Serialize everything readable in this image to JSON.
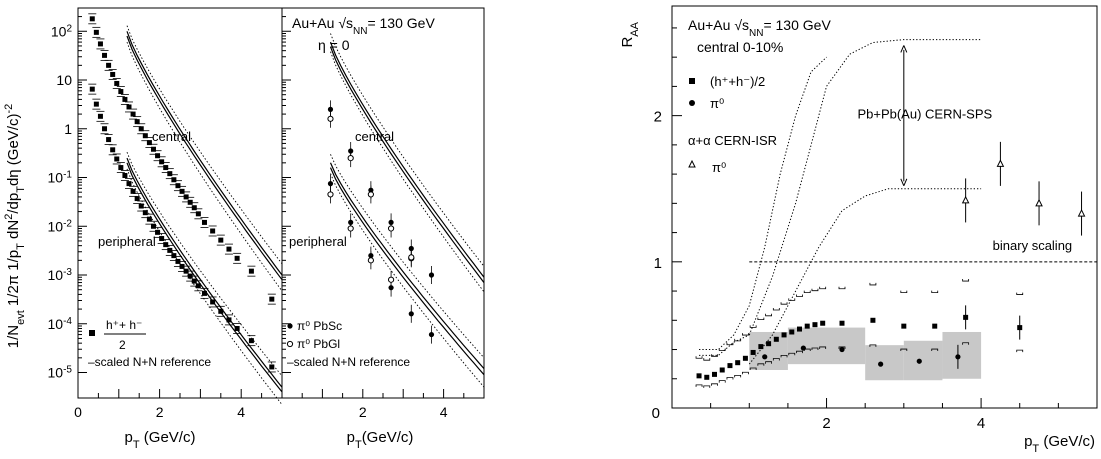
{
  "chart_data": [
    {
      "type": "scatter",
      "panel": "left",
      "log_y": true,
      "ylabel_parts": [
        "1/N",
        "evt",
        " 1/2π 1/p",
        "T",
        " dN",
        "2",
        "/dp",
        "T",
        "dη (GeV/c)",
        "-2"
      ],
      "xlabel_parts": [
        "p",
        "T",
        " (GeV/c)"
      ],
      "xlim": [
        0,
        5
      ],
      "ylim": [
        3e-06,
        300
      ],
      "xticks": [
        "0",
        "2",
        "4"
      ],
      "yticks": [
        {
          "v": 100,
          "b": "10",
          "e": "2"
        },
        {
          "v": 10,
          "b": "10",
          "e": ""
        },
        {
          "v": 1,
          "b": "1",
          "e": ""
        },
        {
          "v": 0.1,
          "b": "10",
          "e": "-1"
        },
        {
          "v": 0.01,
          "b": "10",
          "e": "-2"
        },
        {
          "v": 0.001,
          "b": "10",
          "e": "-3"
        },
        {
          "v": 0.0001,
          "b": "10",
          "e": "-4"
        },
        {
          "v": 1e-05,
          "b": "10",
          "e": "-5"
        }
      ],
      "labels": {
        "central": "central",
        "peripheral": "peripheral"
      },
      "legend": {
        "h_num": "h⁺+ h⁻",
        "h_den": "2",
        "ref": "–scaled N+N reference"
      },
      "series": [
        {
          "marker": "square",
          "x": [
            0.35,
            0.45,
            0.55,
            0.65,
            0.75,
            0.85,
            0.95,
            1.05,
            1.15,
            1.25,
            1.35,
            1.45,
            1.55,
            1.65,
            1.75,
            1.85,
            1.95,
            2.05,
            2.15,
            2.25,
            2.35,
            2.45,
            2.55,
            2.65,
            2.75,
            2.85,
            2.95,
            3.1,
            3.3,
            3.5,
            3.7,
            3.9,
            4.25,
            4.75
          ],
          "y": [
            180,
            95,
            55,
            32,
            20,
            13,
            8.5,
            5.8,
            4,
            2.8,
            2.0,
            1.4,
            1.0,
            0.72,
            0.52,
            0.38,
            0.28,
            0.21,
            0.16,
            0.12,
            0.09,
            0.068,
            0.052,
            0.04,
            0.031,
            0.024,
            0.018,
            0.012,
            0.008,
            0.0052,
            0.0034,
            0.0022,
            0.0012,
            0.00032
          ]
        },
        {
          "marker": "square",
          "x": [
            0.35,
            0.45,
            0.55,
            0.65,
            0.75,
            0.85,
            0.95,
            1.05,
            1.15,
            1.25,
            1.35,
            1.45,
            1.55,
            1.65,
            1.75,
            1.85,
            1.95,
            2.05,
            2.15,
            2.25,
            2.35,
            2.45,
            2.55,
            2.65,
            2.75,
            2.85,
            2.95,
            3.1,
            3.3,
            3.5,
            3.7,
            3.9,
            4.25,
            4.75
          ],
          "y": [
            6.5,
            3.2,
            1.8,
            1.0,
            0.6,
            0.37,
            0.24,
            0.16,
            0.11,
            0.075,
            0.052,
            0.037,
            0.026,
            0.019,
            0.014,
            0.01,
            0.0075,
            0.0056,
            0.0042,
            0.0032,
            0.0025,
            0.0019,
            0.0015,
            0.0012,
            0.00095,
            0.00075,
            0.0006,
            0.00042,
            0.00028,
            0.00018,
            0.00012,
            8e-05,
            4.5e-05,
            1.3e-05
          ]
        }
      ],
      "curves": [
        {
          "style": "solid",
          "x": [
            1.2,
            5
          ],
          "y": [
            100,
            0.001
          ]
        },
        {
          "style": "solid",
          "x": [
            1.2,
            5
          ],
          "y": [
            80,
            0.0008
          ]
        },
        {
          "style": "dotted",
          "x": [
            1.2,
            5
          ],
          "y": [
            130,
            0.0017
          ]
        },
        {
          "style": "dotted",
          "x": [
            1.2,
            5
          ],
          "y": [
            60,
            0.00047
          ]
        },
        {
          "style": "solid",
          "x": [
            1.2,
            5
          ],
          "y": [
            0.25,
            5e-06
          ]
        },
        {
          "style": "solid",
          "x": [
            1.2,
            5
          ],
          "y": [
            0.2,
            4e-06
          ]
        },
        {
          "style": "dotted",
          "x": [
            1.2,
            5
          ],
          "y": [
            0.33,
            8.5e-06
          ]
        },
        {
          "style": "dotted",
          "x": [
            1.2,
            5
          ],
          "y": [
            0.15,
            2.2e-06
          ]
        }
      ]
    },
    {
      "type": "scatter",
      "panel": "middle",
      "log_y": true,
      "title_parts": [
        "Au+Au √s",
        "NN",
        "= 130 GeV"
      ],
      "subtitle": "η = 0",
      "xlabel_parts": [
        "p",
        "T",
        "(GeV/c)"
      ],
      "xlim": [
        0,
        5
      ],
      "ylim": [
        3e-06,
        300
      ],
      "xticks": [
        "2",
        "4"
      ],
      "labels": {
        "central": "central",
        "peripheral": "peripheral"
      },
      "legend": {
        "pbsc": "π⁰ PbSc",
        "pbgl": "π⁰ PbGl",
        "ref": "–scaled N+N reference"
      },
      "series": [
        {
          "name": "π⁰ PbSc",
          "marker": "circle",
          "x": [
            1.2,
            1.7,
            2.2,
            2.7,
            3.2,
            3.7
          ],
          "y": [
            2.5,
            0.35,
            0.055,
            0.012,
            0.0035,
            0.001
          ],
          "x2": [
            1.2,
            1.7,
            2.2,
            2.7,
            3.2,
            3.7
          ],
          "y2": [
            0.075,
            0.012,
            0.0025,
            0.00055,
            0.00016,
            6e-05
          ]
        },
        {
          "name": "π⁰ PbGl",
          "marker": "open-circle",
          "x": [
            1.2,
            1.7,
            2.2,
            2.7,
            3.2
          ],
          "y": [
            1.6,
            0.25,
            0.045,
            0.009,
            0.0022
          ],
          "x2": [
            1.2,
            1.7,
            2.2,
            2.7,
            3.2
          ],
          "y2": [
            0.045,
            0.009,
            0.002,
            0.0008,
            0.0023
          ]
        }
      ],
      "curves": [
        {
          "style": "solid",
          "x": [
            1.2,
            5
          ],
          "y": [
            60,
            0.0009
          ]
        },
        {
          "style": "solid",
          "x": [
            1.2,
            5
          ],
          "y": [
            48,
            0.0007
          ]
        },
        {
          "style": "dotted",
          "x": [
            1.2,
            5
          ],
          "y": [
            90,
            0.0015
          ]
        },
        {
          "style": "dotted",
          "x": [
            1.2,
            5
          ],
          "y": [
            38,
            0.00045
          ]
        },
        {
          "style": "solid",
          "x": [
            1.2,
            5
          ],
          "y": [
            0.2,
            1.2e-05
          ]
        },
        {
          "style": "solid",
          "x": [
            1.2,
            5
          ],
          "y": [
            0.16,
            9e-06
          ]
        },
        {
          "style": "dotted",
          "x": [
            1.2,
            5
          ],
          "y": [
            0.3,
            2e-05
          ]
        },
        {
          "style": "dotted",
          "x": [
            1.2,
            5
          ],
          "y": [
            0.12,
            5e-06
          ]
        }
      ]
    },
    {
      "type": "scatter",
      "panel": "right",
      "ylabel_parts": [
        "R",
        "AA"
      ],
      "xlabel_parts": [
        "p",
        "T",
        " (GeV/c)"
      ],
      "title_parts": [
        "Au+Au √s",
        "NN",
        "= 130 GeV"
      ],
      "subtitle": "central 0-10%",
      "xlim": [
        0,
        5.5
      ],
      "ylim": [
        0,
        2.75
      ],
      "xticks": [
        "0",
        "2",
        "4"
      ],
      "yticks": [
        "1",
        "2"
      ],
      "legend": {
        "h": "(h⁺+h⁻)/2",
        "pi0": "π⁰",
        "isr_title": "α+α CERN-ISR",
        "isr_pi0": "π⁰"
      },
      "annotations": {
        "sps": "Pb+Pb(Au) CERN-SPS",
        "binary": "binary scaling"
      },
      "series": [
        {
          "name": "(h⁺+h⁻)/2",
          "marker": "square",
          "x": [
            0.35,
            0.45,
            0.55,
            0.65,
            0.75,
            0.85,
            0.95,
            1.05,
            1.15,
            1.25,
            1.35,
            1.45,
            1.55,
            1.65,
            1.75,
            1.85,
            1.95,
            2.2,
            2.6,
            3.0,
            3.4,
            3.8,
            4.5
          ],
          "y": [
            0.22,
            0.21,
            0.23,
            0.26,
            0.29,
            0.31,
            0.34,
            0.38,
            0.42,
            0.44,
            0.47,
            0.5,
            0.52,
            0.54,
            0.56,
            0.57,
            0.58,
            0.58,
            0.6,
            0.56,
            0.56,
            0.62,
            0.55
          ]
        },
        {
          "name": "π⁰",
          "marker": "circle",
          "x": [
            1.2,
            1.7,
            2.2,
            2.7,
            3.2,
            3.7
          ],
          "y": [
            0.35,
            0.41,
            0.4,
            0.3,
            0.32,
            0.35
          ]
        },
        {
          "name": "π⁰ α+α CERN-ISR",
          "marker": "open-triangle",
          "x": [
            3.8,
            4.25,
            4.75,
            5.3
          ],
          "y": [
            1.42,
            1.67,
            1.4,
            1.33
          ]
        }
      ],
      "sps_upper": {
        "x": [
          1.0,
          1.3,
          1.6,
          1.8,
          2.0,
          2.3,
          2.6,
          3.0,
          4.0
        ],
        "y": [
          0.5,
          0.9,
          1.4,
          1.8,
          2.2,
          2.42,
          2.5,
          2.52,
          2.52
        ]
      },
      "sps_lower": {
        "x": [
          1.0,
          1.3,
          1.6,
          1.9,
          2.2,
          2.5,
          2.8,
          3.0,
          4.0
        ],
        "y": [
          0.3,
          0.5,
          0.8,
          1.1,
          1.35,
          1.45,
          1.5,
          1.5,
          1.5
        ]
      },
      "binary_scaling": 1.0
    }
  ]
}
